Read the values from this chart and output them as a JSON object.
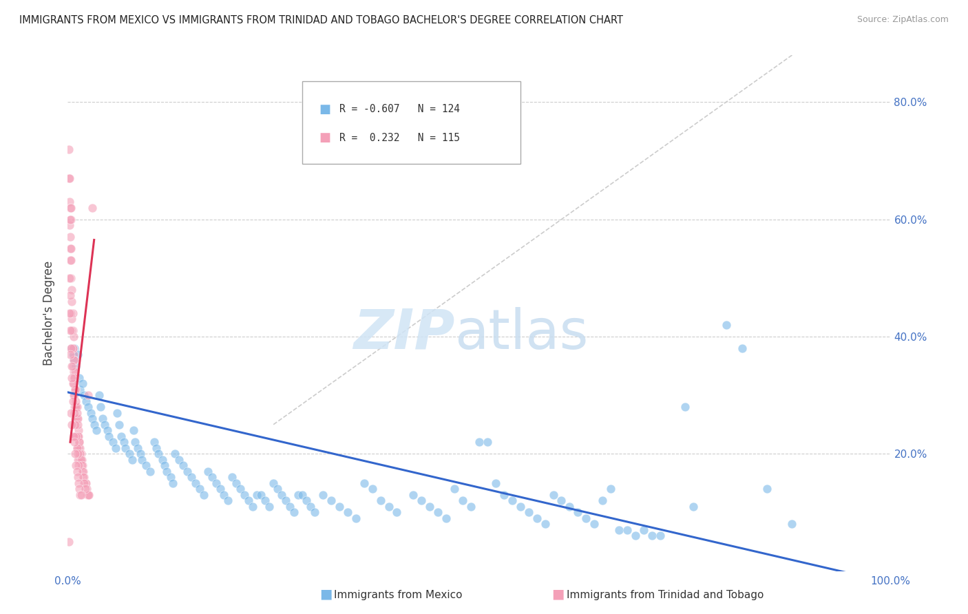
{
  "title": "IMMIGRANTS FROM MEXICO VS IMMIGRANTS FROM TRINIDAD AND TOBAGO BACHELOR'S DEGREE CORRELATION CHART",
  "source": "Source: ZipAtlas.com",
  "ylabel": "Bachelor's Degree",
  "xlim": [
    0.0,
    1.0
  ],
  "ylim": [
    0.0,
    0.88
  ],
  "legend_label1": "Immigrants from Mexico",
  "legend_label2": "Immigrants from Trinidad and Tobago",
  "R_blue": -0.607,
  "N_blue": 124,
  "R_pink": 0.232,
  "N_pink": 115,
  "color_blue": "#7ab8e8",
  "color_pink": "#f4a0b8",
  "trendline_blue_color": "#3366cc",
  "trendline_pink_color": "#dd3355",
  "trendline_diag_color": "#cccccc",
  "blue_trendline": [
    [
      0.0,
      0.305
    ],
    [
      1.0,
      -0.02
    ]
  ],
  "pink_trendline": [
    [
      0.003,
      0.22
    ],
    [
      0.032,
      0.565
    ]
  ],
  "diag_line": [
    [
      0.25,
      0.25
    ],
    [
      0.9,
      0.9
    ]
  ],
  "blue_points": [
    [
      0.005,
      0.38
    ],
    [
      0.006,
      0.37
    ],
    [
      0.007,
      0.36
    ],
    [
      0.008,
      0.38
    ],
    [
      0.01,
      0.35
    ],
    [
      0.012,
      0.37
    ],
    [
      0.014,
      0.33
    ],
    [
      0.015,
      0.31
    ],
    [
      0.018,
      0.32
    ],
    [
      0.02,
      0.3
    ],
    [
      0.022,
      0.29
    ],
    [
      0.025,
      0.28
    ],
    [
      0.028,
      0.27
    ],
    [
      0.03,
      0.26
    ],
    [
      0.032,
      0.25
    ],
    [
      0.035,
      0.24
    ],
    [
      0.038,
      0.3
    ],
    [
      0.04,
      0.28
    ],
    [
      0.042,
      0.26
    ],
    [
      0.045,
      0.25
    ],
    [
      0.048,
      0.24
    ],
    [
      0.05,
      0.23
    ],
    [
      0.055,
      0.22
    ],
    [
      0.058,
      0.21
    ],
    [
      0.06,
      0.27
    ],
    [
      0.062,
      0.25
    ],
    [
      0.065,
      0.23
    ],
    [
      0.068,
      0.22
    ],
    [
      0.07,
      0.21
    ],
    [
      0.075,
      0.2
    ],
    [
      0.078,
      0.19
    ],
    [
      0.08,
      0.24
    ],
    [
      0.082,
      0.22
    ],
    [
      0.085,
      0.21
    ],
    [
      0.088,
      0.2
    ],
    [
      0.09,
      0.19
    ],
    [
      0.095,
      0.18
    ],
    [
      0.1,
      0.17
    ],
    [
      0.105,
      0.22
    ],
    [
      0.108,
      0.21
    ],
    [
      0.11,
      0.2
    ],
    [
      0.115,
      0.19
    ],
    [
      0.118,
      0.18
    ],
    [
      0.12,
      0.17
    ],
    [
      0.125,
      0.16
    ],
    [
      0.128,
      0.15
    ],
    [
      0.13,
      0.2
    ],
    [
      0.135,
      0.19
    ],
    [
      0.14,
      0.18
    ],
    [
      0.145,
      0.17
    ],
    [
      0.15,
      0.16
    ],
    [
      0.155,
      0.15
    ],
    [
      0.16,
      0.14
    ],
    [
      0.165,
      0.13
    ],
    [
      0.17,
      0.17
    ],
    [
      0.175,
      0.16
    ],
    [
      0.18,
      0.15
    ],
    [
      0.185,
      0.14
    ],
    [
      0.19,
      0.13
    ],
    [
      0.195,
      0.12
    ],
    [
      0.2,
      0.16
    ],
    [
      0.205,
      0.15
    ],
    [
      0.21,
      0.14
    ],
    [
      0.215,
      0.13
    ],
    [
      0.22,
      0.12
    ],
    [
      0.225,
      0.11
    ],
    [
      0.23,
      0.13
    ],
    [
      0.235,
      0.13
    ],
    [
      0.24,
      0.12
    ],
    [
      0.245,
      0.11
    ],
    [
      0.25,
      0.15
    ],
    [
      0.255,
      0.14
    ],
    [
      0.26,
      0.13
    ],
    [
      0.265,
      0.12
    ],
    [
      0.27,
      0.11
    ],
    [
      0.275,
      0.1
    ],
    [
      0.28,
      0.13
    ],
    [
      0.285,
      0.13
    ],
    [
      0.29,
      0.12
    ],
    [
      0.295,
      0.11
    ],
    [
      0.3,
      0.1
    ],
    [
      0.31,
      0.13
    ],
    [
      0.32,
      0.12
    ],
    [
      0.33,
      0.11
    ],
    [
      0.34,
      0.1
    ],
    [
      0.35,
      0.09
    ],
    [
      0.36,
      0.15
    ],
    [
      0.37,
      0.14
    ],
    [
      0.38,
      0.12
    ],
    [
      0.39,
      0.11
    ],
    [
      0.4,
      0.1
    ],
    [
      0.42,
      0.13
    ],
    [
      0.43,
      0.12
    ],
    [
      0.44,
      0.11
    ],
    [
      0.45,
      0.1
    ],
    [
      0.46,
      0.09
    ],
    [
      0.47,
      0.14
    ],
    [
      0.48,
      0.12
    ],
    [
      0.49,
      0.11
    ],
    [
      0.5,
      0.22
    ],
    [
      0.51,
      0.22
    ],
    [
      0.52,
      0.15
    ],
    [
      0.53,
      0.13
    ],
    [
      0.54,
      0.12
    ],
    [
      0.55,
      0.11
    ],
    [
      0.56,
      0.1
    ],
    [
      0.57,
      0.09
    ],
    [
      0.58,
      0.08
    ],
    [
      0.59,
      0.13
    ],
    [
      0.6,
      0.12
    ],
    [
      0.61,
      0.11
    ],
    [
      0.62,
      0.1
    ],
    [
      0.63,
      0.09
    ],
    [
      0.64,
      0.08
    ],
    [
      0.65,
      0.12
    ],
    [
      0.66,
      0.14
    ],
    [
      0.67,
      0.07
    ],
    [
      0.68,
      0.07
    ],
    [
      0.69,
      0.06
    ],
    [
      0.7,
      0.07
    ],
    [
      0.71,
      0.06
    ],
    [
      0.72,
      0.06
    ],
    [
      0.75,
      0.28
    ],
    [
      0.76,
      0.11
    ],
    [
      0.8,
      0.42
    ],
    [
      0.82,
      0.38
    ],
    [
      0.85,
      0.14
    ],
    [
      0.88,
      0.08
    ]
  ],
  "pink_points": [
    [
      0.001,
      0.72
    ],
    [
      0.001,
      0.67
    ],
    [
      0.002,
      0.63
    ],
    [
      0.002,
      0.59
    ],
    [
      0.003,
      0.57
    ],
    [
      0.003,
      0.55
    ],
    [
      0.003,
      0.62
    ],
    [
      0.004,
      0.6
    ],
    [
      0.004,
      0.55
    ],
    [
      0.004,
      0.5
    ],
    [
      0.005,
      0.48
    ],
    [
      0.005,
      0.46
    ],
    [
      0.005,
      0.43
    ],
    [
      0.005,
      0.38
    ],
    [
      0.006,
      0.44
    ],
    [
      0.006,
      0.41
    ],
    [
      0.006,
      0.38
    ],
    [
      0.006,
      0.35
    ],
    [
      0.007,
      0.4
    ],
    [
      0.007,
      0.37
    ],
    [
      0.007,
      0.34
    ],
    [
      0.007,
      0.32
    ],
    [
      0.008,
      0.36
    ],
    [
      0.008,
      0.33
    ],
    [
      0.008,
      0.3
    ],
    [
      0.008,
      0.28
    ],
    [
      0.009,
      0.34
    ],
    [
      0.009,
      0.31
    ],
    [
      0.009,
      0.28
    ],
    [
      0.009,
      0.26
    ],
    [
      0.01,
      0.31
    ],
    [
      0.01,
      0.28
    ],
    [
      0.01,
      0.25
    ],
    [
      0.01,
      0.23
    ],
    [
      0.011,
      0.28
    ],
    [
      0.011,
      0.26
    ],
    [
      0.011,
      0.23
    ],
    [
      0.011,
      0.21
    ],
    [
      0.012,
      0.26
    ],
    [
      0.012,
      0.23
    ],
    [
      0.012,
      0.21
    ],
    [
      0.012,
      0.19
    ],
    [
      0.013,
      0.24
    ],
    [
      0.013,
      0.21
    ],
    [
      0.013,
      0.19
    ],
    [
      0.014,
      0.22
    ],
    [
      0.014,
      0.2
    ],
    [
      0.015,
      0.21
    ],
    [
      0.015,
      0.19
    ],
    [
      0.016,
      0.2
    ],
    [
      0.017,
      0.19
    ],
    [
      0.018,
      0.18
    ],
    [
      0.019,
      0.17
    ],
    [
      0.02,
      0.16
    ],
    [
      0.021,
      0.15
    ],
    [
      0.022,
      0.15
    ],
    [
      0.023,
      0.14
    ],
    [
      0.024,
      0.13
    ],
    [
      0.025,
      0.13
    ],
    [
      0.026,
      0.13
    ],
    [
      0.002,
      0.5
    ],
    [
      0.003,
      0.47
    ],
    [
      0.004,
      0.44
    ],
    [
      0.005,
      0.41
    ],
    [
      0.006,
      0.38
    ],
    [
      0.007,
      0.36
    ],
    [
      0.008,
      0.33
    ],
    [
      0.009,
      0.31
    ],
    [
      0.01,
      0.29
    ],
    [
      0.011,
      0.27
    ],
    [
      0.012,
      0.25
    ],
    [
      0.013,
      0.23
    ],
    [
      0.014,
      0.22
    ],
    [
      0.015,
      0.2
    ],
    [
      0.016,
      0.19
    ],
    [
      0.017,
      0.18
    ],
    [
      0.018,
      0.17
    ],
    [
      0.019,
      0.16
    ],
    [
      0.02,
      0.15
    ],
    [
      0.021,
      0.14
    ],
    [
      0.002,
      0.44
    ],
    [
      0.003,
      0.41
    ],
    [
      0.004,
      0.38
    ],
    [
      0.005,
      0.35
    ],
    [
      0.006,
      0.32
    ],
    [
      0.007,
      0.3
    ],
    [
      0.008,
      0.27
    ],
    [
      0.009,
      0.25
    ],
    [
      0.01,
      0.23
    ],
    [
      0.011,
      0.21
    ],
    [
      0.012,
      0.2
    ],
    [
      0.013,
      0.18
    ],
    [
      0.003,
      0.53
    ],
    [
      0.004,
      0.62
    ],
    [
      0.005,
      0.33
    ],
    [
      0.025,
      0.3
    ],
    [
      0.001,
      0.05
    ],
    [
      0.03,
      0.62
    ],
    [
      0.006,
      0.29
    ],
    [
      0.004,
      0.27
    ],
    [
      0.003,
      0.37
    ],
    [
      0.005,
      0.25
    ],
    [
      0.007,
      0.23
    ],
    [
      0.008,
      0.22
    ],
    [
      0.009,
      0.2
    ],
    [
      0.01,
      0.18
    ],
    [
      0.011,
      0.17
    ],
    [
      0.012,
      0.16
    ],
    [
      0.013,
      0.15
    ],
    [
      0.014,
      0.14
    ],
    [
      0.015,
      0.13
    ],
    [
      0.016,
      0.13
    ],
    [
      0.002,
      0.67
    ],
    [
      0.003,
      0.6
    ],
    [
      0.004,
      0.53
    ]
  ]
}
